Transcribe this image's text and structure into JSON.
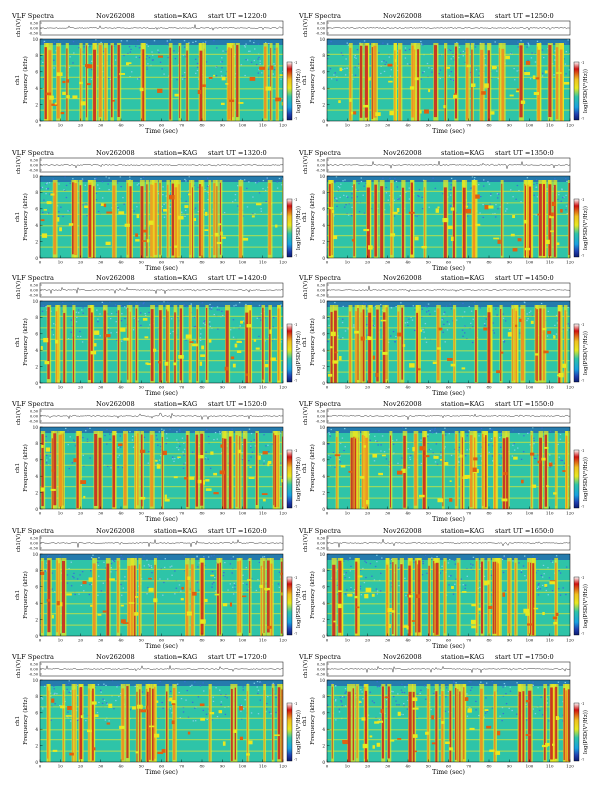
{
  "page": {
    "title": "VLF Spectra sheet Nov26 2008 KAG"
  },
  "common": {
    "header_label": "VLF Spectra",
    "date": "Nov262008",
    "station": "station=KAG",
    "ch_label": "ch1(V)",
    "freq_label": "Frequency (kHz)",
    "time_label": "Time (sec)",
    "colorbar_label": "log(PSD(V²/Hz))",
    "colorbar_ticks": [
      "-1",
      "-7"
    ],
    "ch_ticks": [
      "0.30",
      "0.00",
      "-0.30"
    ],
    "freq_ticks": [
      "0",
      "2",
      "4",
      "6",
      "8",
      "10"
    ],
    "colors": {
      "background": "#2ec4a8",
      "low": "#1f3fb0",
      "mid": "#e8e820",
      "high": "#c81e1e"
    }
  },
  "chart_data": [
    {
      "type": "heatmap",
      "start_ut": "start UT =1220:0",
      "xlim": [
        0,
        120
      ],
      "ylim": [
        0,
        10
      ],
      "xticks": [
        0,
        10,
        20,
        30,
        40,
        50,
        60,
        70,
        80,
        90,
        100,
        110,
        120
      ],
      "xlabel": "Time (sec)",
      "ylabel": "Frequency (kHz)",
      "colorbar_label": "log(PSD(V²/Hz))"
    },
    {
      "type": "heatmap",
      "start_ut": "start UT =1250:0",
      "xlim": [
        0,
        120
      ],
      "ylim": [
        0,
        10
      ],
      "xticks": [
        0,
        10,
        20,
        30,
        40,
        50,
        60,
        70,
        80,
        90,
        100,
        110,
        120
      ],
      "xlabel": "Time (sec)",
      "ylabel": "Frequency (kHz)",
      "colorbar_label": "log(PSD(V²/Hz))"
    },
    {
      "type": "heatmap",
      "start_ut": "start UT =1320:0",
      "xlim": [
        0,
        120
      ],
      "ylim": [
        0,
        10
      ],
      "xticks": [
        0,
        10,
        20,
        30,
        40,
        50,
        60,
        70,
        80,
        90,
        100,
        110,
        120
      ],
      "xlabel": "Time (sec)",
      "ylabel": "Frequency (kHz)",
      "colorbar_label": "log(PSD(V²/Hz))"
    },
    {
      "type": "heatmap",
      "start_ut": "start UT =1350:0",
      "xlim": [
        0,
        120
      ],
      "ylim": [
        0,
        10
      ],
      "xticks": [
        0,
        10,
        20,
        30,
        40,
        50,
        60,
        70,
        80,
        90,
        100,
        110,
        120
      ],
      "xlabel": "Time (sec)",
      "ylabel": "Frequency (kHz)",
      "colorbar_label": "log(PSD(V²/Hz))"
    },
    {
      "type": "heatmap",
      "start_ut": "start UT =1420:0",
      "xlim": [
        0,
        120
      ],
      "ylim": [
        0,
        10
      ],
      "xticks": [
        0,
        10,
        20,
        30,
        40,
        50,
        60,
        70,
        80,
        90,
        100,
        110,
        120
      ],
      "xlabel": "Time (sec)",
      "ylabel": "Frequency (kHz)",
      "colorbar_label": "log(PSD(V²/Hz))"
    },
    {
      "type": "heatmap",
      "start_ut": "start UT =1450:0",
      "xlim": [
        0,
        120
      ],
      "ylim": [
        0,
        10
      ],
      "xticks": [
        0,
        10,
        20,
        30,
        40,
        50,
        60,
        70,
        80,
        90,
        100,
        110,
        120
      ],
      "xlabel": "Time (sec)",
      "ylabel": "Frequency (kHz)",
      "colorbar_label": "log(PSD(V²/Hz))"
    },
    {
      "type": "heatmap",
      "start_ut": "start UT =1520:0",
      "xlim": [
        0,
        120
      ],
      "ylim": [
        0,
        10
      ],
      "xticks": [
        0,
        10,
        20,
        30,
        40,
        50,
        60,
        70,
        80,
        90,
        100,
        110,
        120
      ],
      "xlabel": "Time (sec)",
      "ylabel": "Frequency (kHz)",
      "colorbar_label": "log(PSD(V²/Hz))"
    },
    {
      "type": "heatmap",
      "start_ut": "start UT =1550:0",
      "xlim": [
        0,
        120
      ],
      "ylim": [
        0,
        10
      ],
      "xticks": [
        0,
        10,
        20,
        30,
        40,
        50,
        60,
        70,
        80,
        90,
        100,
        110,
        120
      ],
      "xlabel": "Time (sec)",
      "ylabel": "Frequency (kHz)",
      "colorbar_label": "log(PSD(V²/Hz))"
    },
    {
      "type": "heatmap",
      "start_ut": "start UT =1620:0",
      "xlim": [
        0,
        120
      ],
      "ylim": [
        0,
        10
      ],
      "xticks": [
        0,
        10,
        20,
        30,
        40,
        50,
        60,
        70,
        80,
        90,
        100,
        110,
        120
      ],
      "xlabel": "Time (sec)",
      "ylabel": "Frequency (kHz)",
      "colorbar_label": "log(PSD(V²/Hz))"
    },
    {
      "type": "heatmap",
      "start_ut": "start UT =1650:0",
      "xlim": [
        0,
        120
      ],
      "ylim": [
        0,
        10
      ],
      "xticks": [
        0,
        10,
        20,
        30,
        40,
        50,
        60,
        70,
        80,
        90,
        100,
        110,
        120
      ],
      "xlabel": "Time (sec)",
      "ylabel": "Frequency (kHz)",
      "colorbar_label": "log(PSD(V²/Hz))"
    },
    {
      "type": "heatmap",
      "start_ut": "start UT =1720:0",
      "xlim": [
        0,
        120
      ],
      "ylim": [
        0,
        10
      ],
      "xticks": [
        0,
        10,
        20,
        30,
        40,
        50,
        60,
        70,
        80,
        90,
        100,
        110,
        120
      ],
      "xlabel": "Time (sec)",
      "ylabel": "Frequency (kHz)",
      "colorbar_label": "log(PSD(V²/Hz))"
    },
    {
      "type": "heatmap",
      "start_ut": "start UT =1750:0",
      "xlim": [
        0,
        120
      ],
      "ylim": [
        0,
        10
      ],
      "xticks": [
        0,
        10,
        20,
        30,
        40,
        50,
        60,
        70,
        80,
        90,
        100,
        110,
        120
      ],
      "xlabel": "Time (sec)",
      "ylabel": "Frequency (kHz)",
      "colorbar_label": "log(PSD(V²/Hz))"
    }
  ]
}
